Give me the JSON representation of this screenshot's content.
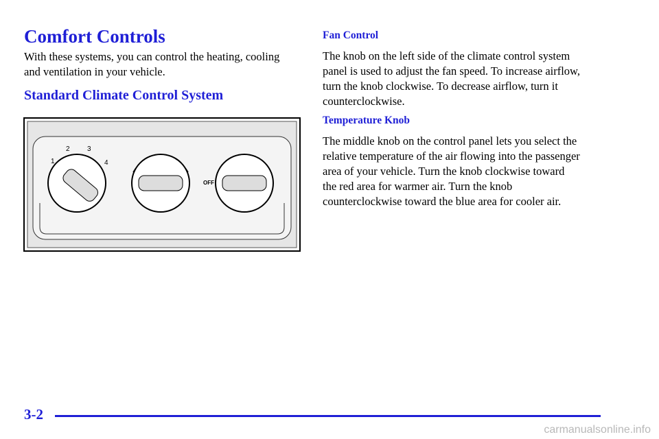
{
  "header": {
    "title": "Comfort Controls"
  },
  "intro": [
    "With these systems, you can control the heating, cooling",
    "and ventilation in your vehicle."
  ],
  "section": {
    "title": "Standard Climate Control System"
  },
  "illustration": {
    "fan_speeds": [
      "1",
      "2",
      "3",
      "4"
    ],
    "off_label": "OFF"
  },
  "fan_control": {
    "title": "Fan Control",
    "lines": [
      "The knob on the left side of the climate control system",
      "panel is used to adjust the fan speed. To increase airflow,",
      "turn the knob clockwise. To decrease airflow, turn it",
      "counterclockwise."
    ]
  },
  "temperature_knob": {
    "title": "Temperature Knob",
    "lines": [
      "The middle knob on the control panel lets you select the",
      "relative temperature of the air flowing into the passenger",
      "area of your vehicle. Turn the knob clockwise toward",
      "the red area for warmer air. Turn the knob",
      "counterclockwise toward the blue area for cooler air."
    ]
  },
  "footer": {
    "page_number": "3-2",
    "watermark": "carmanualsonline.info"
  }
}
